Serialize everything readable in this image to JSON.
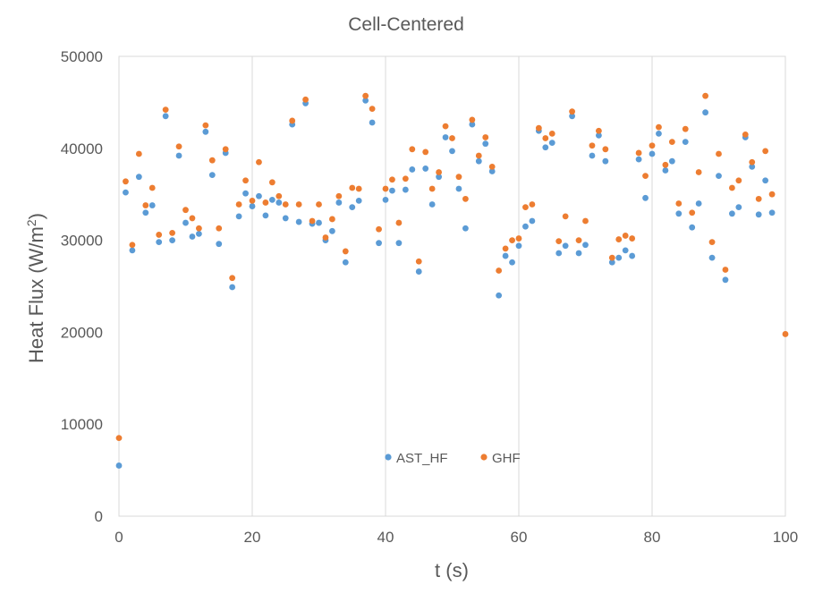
{
  "chart_data": {
    "type": "scatter",
    "title": "Cell-Centered",
    "xlabel": "t (s)",
    "ylabel": "Heat Flux (W/m²)",
    "ylabel_main": "Heat Flux (W/m",
    "ylabel_sup": "2",
    "ylabel_close": ")",
    "xlim": [
      0,
      100
    ],
    "ylim": [
      0,
      50000
    ],
    "x_ticks": [
      0,
      20,
      40,
      60,
      80,
      100
    ],
    "y_ticks": [
      0,
      10000,
      20000,
      30000,
      40000,
      50000
    ],
    "x_tick_labels": [
      "0",
      "20",
      "40",
      "60",
      "80",
      "100"
    ],
    "y_tick_labels": [
      "0",
      "10000",
      "20000",
      "30000",
      "40000",
      "50000"
    ],
    "grid": "vertical",
    "legend_position": "bottom-center",
    "series": [
      {
        "name": "AST_HF",
        "color": "#5b9bd5",
        "x": [
          0,
          1,
          2,
          3,
          4,
          5,
          6,
          7,
          8,
          9,
          10,
          11,
          12,
          13,
          14,
          15,
          16,
          17,
          18,
          19,
          20,
          21,
          22,
          23,
          24,
          25,
          26,
          27,
          28,
          29,
          30,
          31,
          32,
          33,
          34,
          35,
          36,
          37,
          38,
          39,
          40,
          41,
          42,
          43,
          44,
          45,
          46,
          47,
          48,
          49,
          50,
          51,
          52,
          53,
          54,
          55,
          56,
          57,
          58,
          59,
          60,
          61,
          62,
          63,
          64,
          65,
          66,
          67,
          68,
          69,
          70,
          71,
          72,
          73,
          74,
          75,
          76,
          77,
          78,
          79,
          80,
          81,
          82,
          83,
          84,
          85,
          86,
          87,
          88,
          89,
          90,
          91,
          92,
          93,
          94,
          95,
          96,
          97,
          98,
          99
        ],
        "y": [
          5500,
          35200,
          28900,
          36900,
          33000,
          33800,
          29800,
          43500,
          30000,
          39200,
          31900,
          30400,
          30700,
          41800,
          37100,
          29600,
          39500,
          24900,
          32600,
          35100,
          33700,
          34800,
          32700,
          34400,
          34100,
          32400,
          42600,
          32000,
          44900,
          31800,
          31900,
          30000,
          31000,
          34100,
          27600,
          33600,
          34300,
          45200,
          42800,
          29700,
          34400,
          35400,
          29700,
          35500,
          37700,
          26600,
          37800,
          33900,
          36900,
          41200,
          39700,
          35600,
          31300,
          42600,
          38600,
          40500,
          37500,
          24000,
          28300,
          27600,
          29400,
          31500,
          32100,
          41900,
          40100,
          40600,
          28600,
          29400,
          43500,
          28600,
          29500,
          39200,
          41400,
          38600,
          27600,
          28100,
          28900,
          28300,
          38800,
          34600,
          39400,
          41600,
          37600,
          38600,
          32900,
          40700,
          31400,
          34000,
          43900,
          28100,
          37000,
          25700,
          32900,
          33600,
          41200,
          38000,
          32800,
          36500,
          33000,
          null
        ]
      },
      {
        "name": "GHF",
        "color": "#ed7d31",
        "x": [
          0,
          1,
          2,
          3,
          4,
          5,
          6,
          7,
          8,
          9,
          10,
          11,
          12,
          13,
          14,
          15,
          16,
          17,
          18,
          19,
          20,
          21,
          22,
          23,
          24,
          25,
          26,
          27,
          28,
          29,
          30,
          31,
          32,
          33,
          34,
          35,
          36,
          37,
          38,
          39,
          40,
          41,
          42,
          43,
          44,
          45,
          46,
          47,
          48,
          49,
          50,
          51,
          52,
          53,
          54,
          55,
          56,
          57,
          58,
          59,
          60,
          61,
          62,
          63,
          64,
          65,
          66,
          67,
          68,
          69,
          70,
          71,
          72,
          73,
          74,
          75,
          76,
          77,
          78,
          79,
          80,
          81,
          82,
          83,
          84,
          85,
          86,
          87,
          88,
          89,
          90,
          91,
          92,
          93,
          94,
          95,
          96,
          97,
          98,
          99,
          100
        ],
        "y": [
          8500,
          36400,
          29500,
          39400,
          33800,
          35700,
          30600,
          44200,
          30800,
          40200,
          33300,
          32400,
          31300,
          42500,
          38700,
          31300,
          39900,
          25900,
          33900,
          36500,
          34300,
          38500,
          34100,
          36300,
          34800,
          33900,
          43000,
          33900,
          45300,
          32100,
          33900,
          30300,
          32300,
          34800,
          28800,
          35700,
          35600,
          45700,
          44300,
          31200,
          35600,
          36600,
          31900,
          36700,
          39900,
          27700,
          39600,
          35600,
          37400,
          42400,
          41100,
          36900,
          34500,
          43100,
          39200,
          41200,
          38000,
          26700,
          29100,
          30000,
          30200,
          33600,
          33900,
          42200,
          41100,
          41600,
          29900,
          32600,
          44000,
          30000,
          32100,
          40300,
          41900,
          39900,
          28100,
          30100,
          30500,
          30200,
          39500,
          37000,
          40300,
          42300,
          38200,
          40700,
          34000,
          42100,
          33000,
          37400,
          45700,
          29800,
          39400,
          26800,
          35700,
          36500,
          41500,
          38500,
          34500,
          39700,
          35000,
          null,
          19800
        ]
      }
    ]
  }
}
